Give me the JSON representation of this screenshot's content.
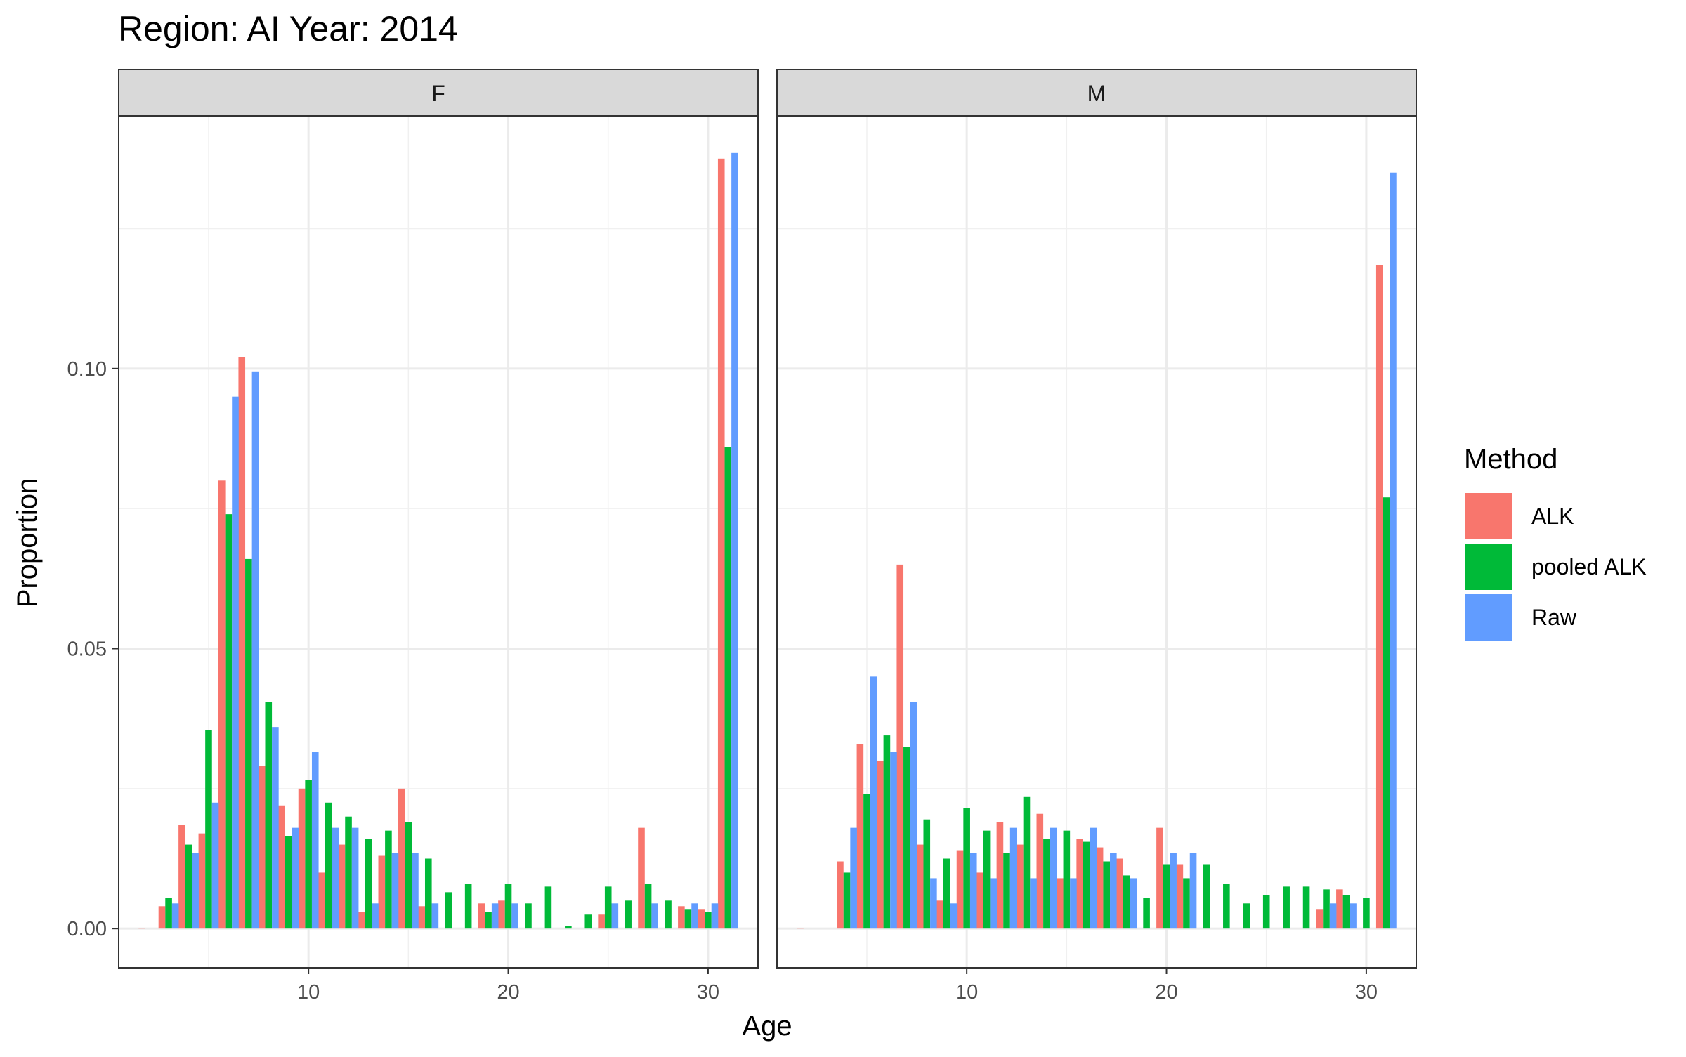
{
  "chart_data": {
    "type": "bar",
    "title": "Region: AI Year: 2014",
    "xlabel": "Age",
    "ylabel": "Proportion",
    "xlim": [
      0.5,
      32.5
    ],
    "ylim": [
      -0.007,
      0.145
    ],
    "x_ticks": [
      10,
      20,
      30
    ],
    "x_tick_labels": [
      "10",
      "20",
      "30"
    ],
    "y_ticks": [
      0.0,
      0.05,
      0.1
    ],
    "y_tick_labels": [
      "0.00",
      "0.05",
      "0.10"
    ],
    "grid": true,
    "legend": {
      "title": "Method",
      "position": "right",
      "entries": [
        {
          "name": "ALK",
          "color": "#F8766D"
        },
        {
          "name": "pooled ALK",
          "color": "#00BA38"
        },
        {
          "name": "Raw",
          "color": "#619CFF"
        }
      ]
    },
    "panels": [
      {
        "label": "F",
        "series": [
          {
            "name": "ALK",
            "x": [
              2,
              3,
              4,
              5,
              6,
              7,
              8,
              9,
              10,
              11,
              12,
              13,
              14,
              15,
              16,
              19,
              20,
              25,
              27,
              29,
              30,
              31
            ],
            "values": [
              0.0001,
              0.004,
              0.0185,
              0.017,
              0.08,
              0.102,
              0.029,
              0.022,
              0.025,
              0.01,
              0.015,
              0.003,
              0.013,
              0.025,
              0.004,
              0.0045,
              0.005,
              0.0025,
              0.018,
              0.004,
              0.0035,
              0.1375
            ]
          },
          {
            "name": "pooled ALK",
            "x": [
              3,
              4,
              5,
              6,
              7,
              8,
              9,
              10,
              11,
              12,
              13,
              14,
              15,
              16,
              17,
              18,
              19,
              20,
              21,
              22,
              23,
              24,
              25,
              26,
              27,
              28,
              29,
              30,
              31
            ],
            "values": [
              0.0055,
              0.015,
              0.0355,
              0.074,
              0.066,
              0.0405,
              0.0165,
              0.0265,
              0.0225,
              0.02,
              0.016,
              0.0175,
              0.019,
              0.0125,
              0.0065,
              0.008,
              0.003,
              0.008,
              0.0045,
              0.0075,
              0.0005,
              0.0025,
              0.0075,
              0.005,
              0.008,
              0.005,
              0.0035,
              0.003,
              0.086
            ]
          },
          {
            "name": "Raw",
            "x": [
              3,
              4,
              5,
              6,
              7,
              8,
              9,
              10,
              11,
              12,
              13,
              14,
              15,
              16,
              19,
              20,
              25,
              27,
              29,
              30,
              31
            ],
            "values": [
              0.0045,
              0.0135,
              0.0225,
              0.095,
              0.0995,
              0.036,
              0.018,
              0.0315,
              0.018,
              0.018,
              0.0045,
              0.0135,
              0.0135,
              0.0045,
              0.0045,
              0.0045,
              0.0045,
              0.0045,
              0.0045,
              0.0045,
              0.1385
            ]
          }
        ]
      },
      {
        "label": "M",
        "series": [
          {
            "name": "ALK",
            "x": [
              2,
              4,
              5,
              6,
              7,
              8,
              9,
              10,
              11,
              12,
              13,
              14,
              15,
              16,
              17,
              18,
              20,
              21,
              28,
              29,
              31
            ],
            "values": [
              0.0001,
              0.012,
              0.033,
              0.03,
              0.065,
              0.015,
              0.005,
              0.014,
              0.01,
              0.019,
              0.015,
              0.0205,
              0.009,
              0.016,
              0.0145,
              0.0125,
              0.018,
              0.0115,
              0.0035,
              0.007,
              0.1185
            ]
          },
          {
            "name": "pooled ALK",
            "x": [
              4,
              5,
              6,
              7,
              8,
              9,
              10,
              11,
              12,
              13,
              14,
              15,
              16,
              17,
              18,
              19,
              20,
              21,
              22,
              23,
              24,
              25,
              26,
              27,
              28,
              29,
              30,
              31
            ],
            "values": [
              0.01,
              0.024,
              0.0345,
              0.0325,
              0.0195,
              0.0125,
              0.0215,
              0.0175,
              0.0135,
              0.0235,
              0.016,
              0.0175,
              0.0155,
              0.012,
              0.0095,
              0.0055,
              0.0115,
              0.009,
              0.0115,
              0.008,
              0.0045,
              0.006,
              0.0075,
              0.0075,
              0.007,
              0.006,
              0.0055,
              0.077
            ]
          },
          {
            "name": "Raw",
            "x": [
              4,
              5,
              6,
              7,
              8,
              9,
              10,
              11,
              12,
              13,
              14,
              15,
              16,
              17,
              18,
              20,
              21,
              28,
              29,
              31
            ],
            "values": [
              0.018,
              0.045,
              0.0315,
              0.0405,
              0.009,
              0.0045,
              0.0135,
              0.009,
              0.018,
              0.009,
              0.018,
              0.009,
              0.018,
              0.0135,
              0.009,
              0.0135,
              0.0135,
              0.0045,
              0.0045,
              0.135
            ]
          }
        ]
      }
    ]
  }
}
